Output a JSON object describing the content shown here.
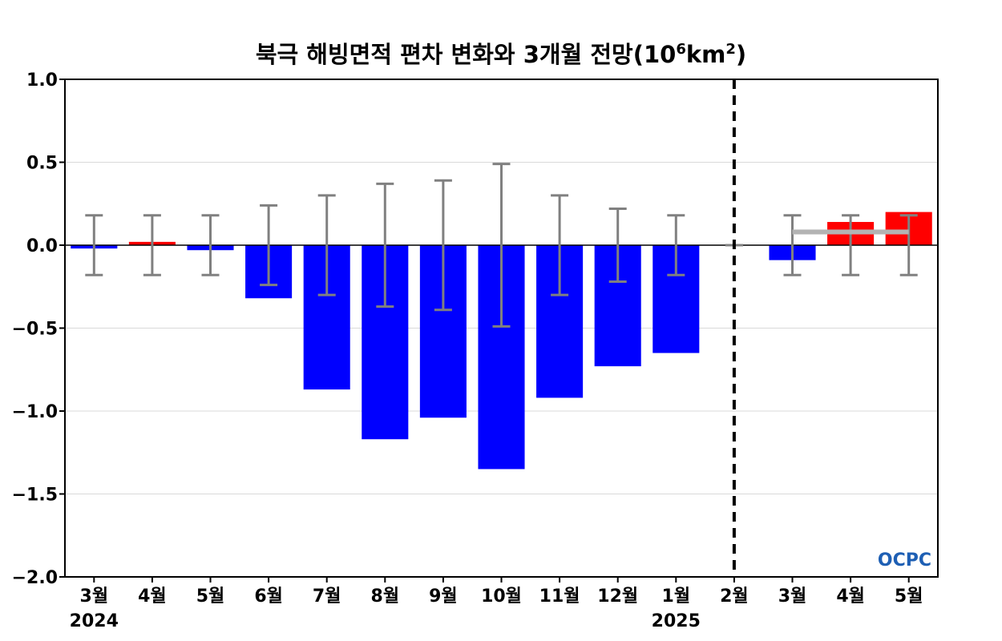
{
  "chart_data": {
    "type": "bar",
    "title": "북극 해빙면적 편차 변화와 3개월 전망",
    "title_unit": {
      "base": "10",
      "exp": "6",
      "unit": "km",
      "unit_exp": "2"
    },
    "categories": [
      "3월",
      "4월",
      "5월",
      "6월",
      "7월",
      "8월",
      "9월",
      "10월",
      "11월",
      "12월",
      "1월",
      "2월",
      "3월",
      "4월",
      "5월"
    ],
    "year_labels": [
      {
        "index": 0,
        "label": "2024"
      },
      {
        "index": 10,
        "label": "2025"
      }
    ],
    "values": [
      -0.02,
      0.02,
      -0.03,
      -0.32,
      -0.87,
      -1.17,
      -1.04,
      -1.35,
      -0.92,
      -0.73,
      -0.65,
      0.0,
      -0.09,
      0.14,
      0.2
    ],
    "error_bars": [
      0.18,
      0.18,
      0.18,
      0.24,
      0.3,
      0.37,
      0.39,
      0.49,
      0.3,
      0.22,
      0.18,
      0.0,
      0.18,
      0.18,
      0.18
    ],
    "forecast_mean": {
      "from_index": 12,
      "to_index": 14,
      "value": 0.08,
      "color": "#b3b3b3"
    },
    "forecast_divider_after_index": 11,
    "colors": {
      "negative": "#0000ff",
      "positive": "#ff0000",
      "error_bar": "#808080",
      "zero_line": "#000000",
      "grid": "#d9d9d9"
    },
    "ylim": [
      -2.0,
      1.0
    ],
    "yticks": [
      1.0,
      0.5,
      0.0,
      -0.5,
      -1.0,
      -1.5,
      -2.0
    ],
    "ytick_labels": [
      "1.0",
      "0.5",
      "0.0",
      "−0.5",
      "−1.0",
      "−1.5",
      "−2.0"
    ],
    "grid": true,
    "xlabel": "",
    "ylabel": ""
  },
  "logo": {
    "text": "OCPC",
    "color": "#1e5fb4"
  }
}
